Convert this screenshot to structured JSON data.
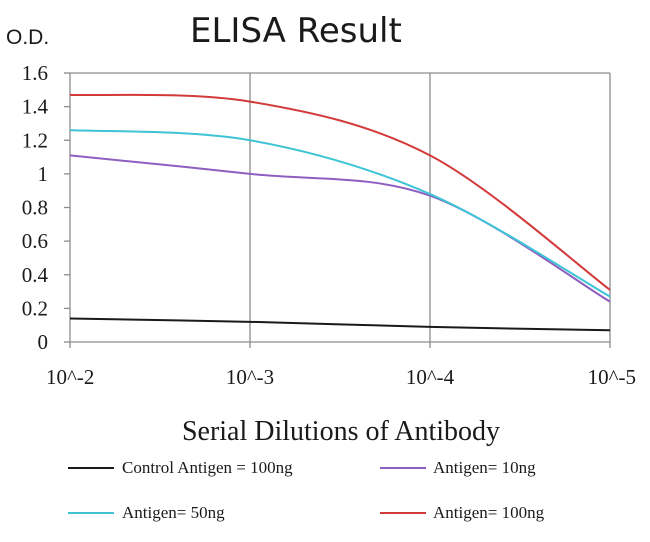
{
  "chart_data": {
    "type": "line",
    "title": "ELISA Result",
    "ylabel": "O.D.",
    "xlabel": "Serial Dilutions of Antibody",
    "x_scale": "log",
    "x": [
      0.01,
      0.001,
      0.0001,
      1e-05
    ],
    "x_tick_labels": [
      "10^-2",
      "10^-3",
      "10^-4",
      "10^-5"
    ],
    "ylim": [
      0,
      1.6
    ],
    "y_ticks": [
      0,
      0.2,
      0.4,
      0.6,
      0.8,
      1,
      1.2,
      1.4,
      1.6
    ],
    "y_tick_labels": [
      "0",
      "0.2",
      "0.4",
      "0.6",
      "0.8",
      "1",
      "1.2",
      "1.4",
      "1.6"
    ],
    "grid": "vertical",
    "legend_position": "bottom",
    "series": [
      {
        "name": "Control Antigen = 100ng",
        "color": "#1a1a1a",
        "values": [
          0.14,
          0.12,
          0.09,
          0.07
        ]
      },
      {
        "name": "Antigen= 10ng",
        "color": "#8e5fc0",
        "values": [
          1.11,
          1.0,
          0.87,
          0.24
        ]
      },
      {
        "name": "Antigen= 50ng",
        "color": "#3ec4d6",
        "values": [
          1.26,
          1.2,
          0.88,
          0.27
        ]
      },
      {
        "name": "Antigen= 100ng",
        "color": "#d33a3a",
        "values": [
          1.47,
          1.43,
          1.11,
          0.31
        ]
      }
    ]
  }
}
